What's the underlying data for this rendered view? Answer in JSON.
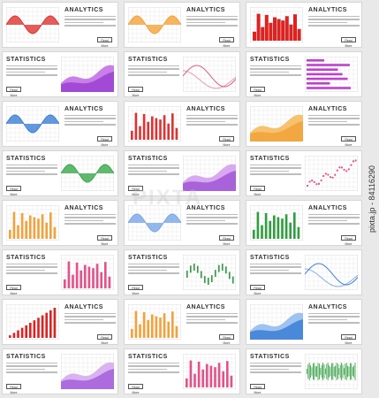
{
  "cards": [
    {
      "title": "ANALYTICS",
      "button": "Read More",
      "chart": "wave-red",
      "layout": "left"
    },
    {
      "title": "ANALYTICS",
      "button": "Read More",
      "chart": "wave-orange",
      "layout": "left"
    },
    {
      "title": "ANALYTICS",
      "button": "Read More",
      "chart": "spikes-red",
      "layout": "left"
    },
    {
      "title": "STATISTICS",
      "button": "Read More",
      "chart": "area-purple",
      "layout": "right"
    },
    {
      "title": "STATISTICS",
      "button": "Read More",
      "chart": "lines-pink",
      "layout": "right"
    },
    {
      "title": "STATISTICS",
      "button": "Read More",
      "chart": "hbars-purple",
      "layout": "right"
    },
    {
      "title": "ANALYTICS",
      "button": "Read More",
      "chart": "wave-blue",
      "layout": "left"
    },
    {
      "title": "ANALYTICS",
      "button": "Read More",
      "chart": "bars-red",
      "layout": "left"
    },
    {
      "title": "ANALYTICS",
      "button": "Read More",
      "chart": "area-orange",
      "layout": "left"
    },
    {
      "title": "STATISTICS",
      "button": "Read More",
      "chart": "wave-green",
      "layout": "right"
    },
    {
      "title": "STATISTICS",
      "button": "Read More",
      "chart": "area-violet",
      "layout": "right"
    },
    {
      "title": "STATISTICS",
      "button": "Read More",
      "chart": "scatter-pink",
      "layout": "right"
    },
    {
      "title": "ANALYTICS",
      "button": "Read More",
      "chart": "bars-orange",
      "layout": "left"
    },
    {
      "title": "ANALYTICS",
      "button": "Read More",
      "chart": "wave-blue2",
      "layout": "left"
    },
    {
      "title": "ANALYTICS",
      "button": "Read More",
      "chart": "bars-green",
      "layout": "left"
    },
    {
      "title": "STATISTICS",
      "button": "Read More",
      "chart": "bars-pink",
      "layout": "right"
    },
    {
      "title": "STATISTICS",
      "button": "Read More",
      "chart": "candles-green",
      "layout": "right"
    },
    {
      "title": "STATISTICS",
      "button": "Read More",
      "chart": "lines-blue",
      "layout": "right"
    },
    {
      "title": "ANALYTICS",
      "button": "Read More",
      "chart": "rising-red",
      "layout": "left"
    },
    {
      "title": "ANALYTICS",
      "button": "Read More",
      "chart": "bars-orange2",
      "layout": "left"
    },
    {
      "title": "ANALYTICS",
      "button": "Read More",
      "chart": "area-blue",
      "layout": "left"
    },
    {
      "title": "STATISTICS",
      "button": "Read More",
      "chart": "area-purple2",
      "layout": "right"
    },
    {
      "title": "STATISTICS",
      "button": "Read More",
      "chart": "bars-pink2",
      "layout": "right"
    },
    {
      "title": "STATISTICS",
      "button": "Read More",
      "chart": "noise-green",
      "layout": "right"
    }
  ],
  "side_text": "pixta.jp - 84116290",
  "watermark": "PIXTA"
}
